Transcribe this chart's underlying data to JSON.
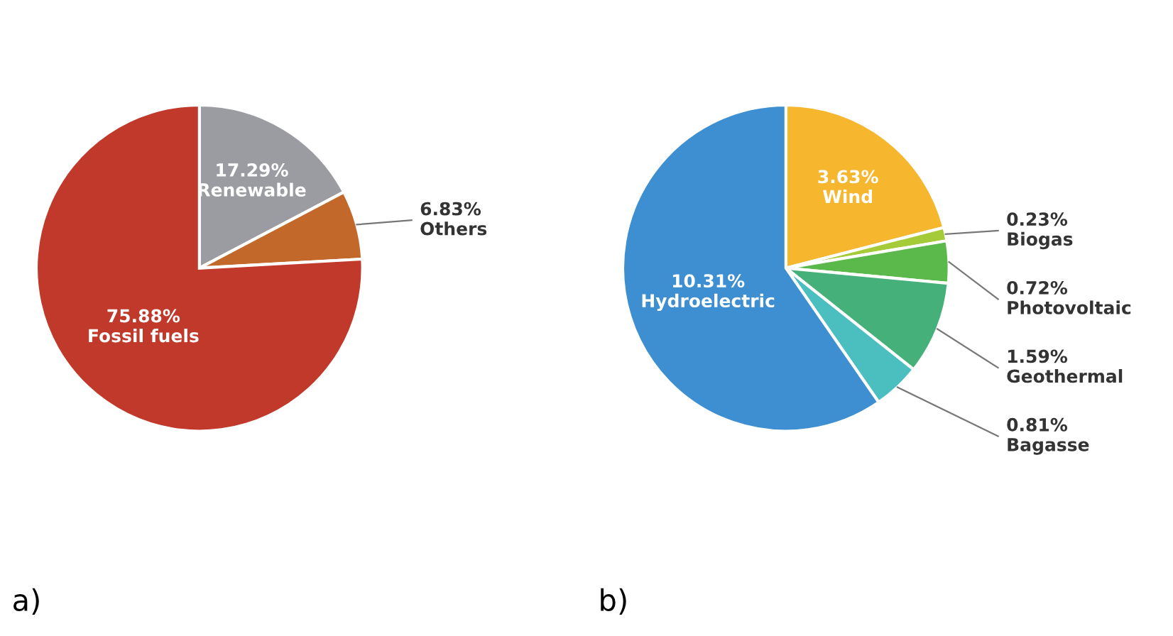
{
  "chart_data": [
    {
      "type": "pie",
      "categories": [
        "Renewable",
        "Others",
        "Fossil fuels"
      ],
      "values": [
        17.29,
        6.83,
        75.88
      ],
      "value_labels": [
        "17.29%",
        "6.83%",
        "75.88%"
      ],
      "colors": [
        "#9b9ca1",
        "#c2682a",
        "#c0392b"
      ],
      "annotations": [
        "a)"
      ]
    },
    {
      "type": "pie",
      "categories": [
        "Wind",
        "Biogas",
        "Photovoltaic",
        "Geothermal",
        "Bagasse",
        "Hydroelectric"
      ],
      "values": [
        3.63,
        0.23,
        0.72,
        1.59,
        0.81,
        10.31
      ],
      "value_labels": [
        "3.63%",
        "0.23%",
        "0.72%",
        "1.59%",
        "0.81%",
        "10.31%"
      ],
      "colors": [
        "#f6b62e",
        "#a6cb38",
        "#5bb84a",
        "#46b07a",
        "#4bbfc0",
        "#3d8fd1"
      ],
      "annotations": [
        "b)"
      ]
    }
  ]
}
